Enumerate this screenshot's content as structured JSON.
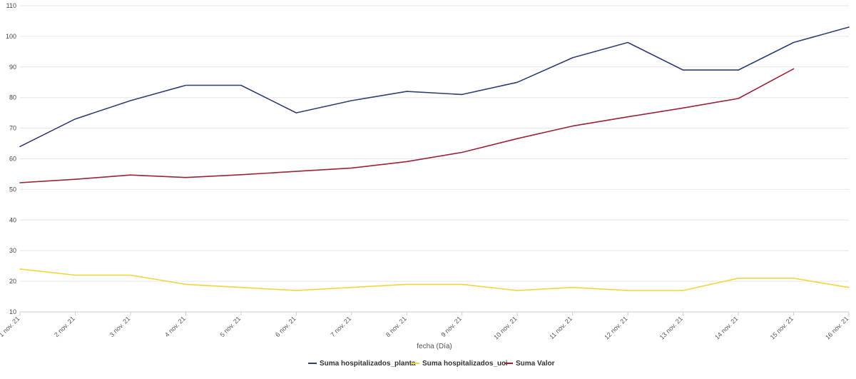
{
  "chart_data": {
    "type": "line",
    "title": "",
    "xlabel": "fecha (Día)",
    "ylabel": "",
    "ylim": [
      10,
      110
    ],
    "yticks": [
      10,
      20,
      30,
      40,
      50,
      60,
      70,
      80,
      90,
      100,
      110
    ],
    "grid": true,
    "legend_position": "bottom-center",
    "categories": [
      "1 nov. 21",
      "2 nov. 21",
      "3 nov. 21",
      "4 nov. 21",
      "5 nov. 21",
      "6 nov. 21",
      "7 nov. 21",
      "8 nov. 21",
      "9 nov. 21",
      "10 nov. 21",
      "11 nov. 21",
      "12 nov. 21",
      "13 nov. 21",
      "14 nov. 21",
      "15 nov. 21",
      "16 nov. 21"
    ],
    "series": [
      {
        "name": "Suma hospitalizados_planta",
        "color": "#2f3e75",
        "values": [
          64,
          73,
          79,
          84,
          84,
          75,
          79,
          82,
          81,
          85,
          93,
          98,
          89,
          89,
          98,
          103
        ]
      },
      {
        "name": "Suma hospitalizados_uci",
        "color": "#f2d53c",
        "values": [
          24,
          22,
          22,
          19,
          18,
          17,
          18,
          19,
          19,
          17,
          18,
          17,
          17,
          21,
          21,
          18
        ]
      },
      {
        "name": "Suma Valor",
        "color": "#9b2335",
        "values": [
          52.2,
          53.3,
          54.7,
          53.9,
          54.8,
          55.9,
          57,
          59.1,
          62.1,
          66.6,
          70.7,
          73.7,
          76.6,
          79.7,
          89.4,
          null
        ]
      }
    ]
  }
}
